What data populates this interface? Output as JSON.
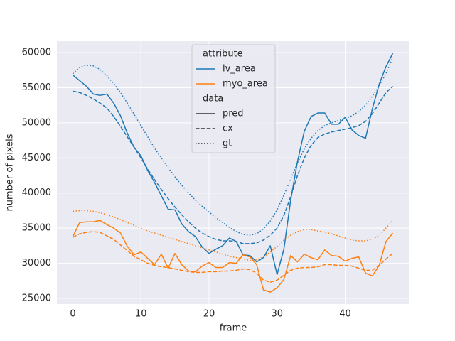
{
  "chart_data": {
    "type": "line",
    "xlabel": "frame",
    "ylabel": "number of pixels",
    "x": [
      0,
      1,
      2,
      3,
      4,
      5,
      6,
      7,
      8,
      9,
      10,
      11,
      12,
      13,
      14,
      15,
      16,
      17,
      18,
      19,
      20,
      21,
      22,
      23,
      24,
      25,
      26,
      27,
      28,
      29,
      30,
      31,
      32,
      33,
      34,
      35,
      36,
      37,
      38,
      39,
      40,
      41,
      42,
      43,
      44,
      45,
      46,
      47
    ],
    "xlim": [
      -2.35,
      49.35
    ],
    "xticks": [
      0,
      10,
      20,
      30,
      40
    ],
    "ylim": [
      24190,
      61620
    ],
    "yticks": [
      25000,
      30000,
      35000,
      40000,
      45000,
      50000,
      55000,
      60000
    ],
    "grid": true,
    "legend": "upper center",
    "hue": {
      "title": "attribute",
      "levels": [
        {
          "name": "lv_area",
          "color": "#1f77b4"
        },
        {
          "name": "myo_area",
          "color": "#ff7f0e"
        }
      ]
    },
    "style": {
      "title": "data",
      "levels": [
        {
          "name": "pred",
          "dash": "solid"
        },
        {
          "name": "cx",
          "dash": "dashed"
        },
        {
          "name": "gt",
          "dash": "dotted"
        }
      ]
    },
    "series": [
      {
        "hue": "lv_area",
        "style": "pred",
        "values": [
          56800,
          56000,
          55200,
          54100,
          53900,
          54100,
          52800,
          51000,
          48500,
          46500,
          45300,
          43200,
          41500,
          39600,
          37700,
          37600,
          35600,
          34500,
          33800,
          32300,
          31400,
          32000,
          32500,
          33600,
          33100,
          31200,
          31100,
          30200,
          30800,
          32500,
          28400,
          32000,
          39000,
          44500,
          48800,
          50900,
          51400,
          51400,
          49800,
          49800,
          50800,
          49000,
          48200,
          47800,
          52000,
          55500,
          58000,
          59900
        ]
      },
      {
        "hue": "lv_area",
        "style": "cx",
        "values": [
          54500,
          54300,
          53900,
          53400,
          52800,
          52100,
          50900,
          49500,
          48000,
          46500,
          45000,
          43400,
          41900,
          40500,
          39200,
          38000,
          36900,
          35900,
          35000,
          34300,
          33800,
          33400,
          33200,
          33200,
          33100,
          32800,
          32800,
          32900,
          33300,
          34000,
          35000,
          36800,
          39500,
          42500,
          45000,
          46800,
          47900,
          48400,
          48700,
          48900,
          49100,
          49300,
          49600,
          50200,
          51300,
          52800,
          54300,
          55200
        ]
      },
      {
        "hue": "lv_area",
        "style": "gt",
        "values": [
          57000,
          57900,
          58200,
          58100,
          57600,
          56700,
          55600,
          54300,
          52800,
          51200,
          49600,
          48000,
          46400,
          45000,
          43600,
          42300,
          41100,
          40000,
          39000,
          38100,
          37300,
          36500,
          35800,
          35100,
          34500,
          34100,
          34000,
          34200,
          34900,
          36000,
          37600,
          39700,
          42000,
          44300,
          46300,
          47800,
          48900,
          49600,
          50000,
          50300,
          50600,
          51000,
          51600,
          52500,
          53800,
          55300,
          57000,
          59300
        ]
      },
      {
        "hue": "myo_area",
        "style": "pred",
        "values": [
          33800,
          35800,
          35900,
          35900,
          36100,
          35500,
          35000,
          34300,
          32400,
          31200,
          31600,
          30700,
          29800,
          31300,
          29300,
          31400,
          29800,
          28900,
          28800,
          29600,
          30100,
          29400,
          29400,
          30100,
          30000,
          31200,
          30900,
          29800,
          26200,
          25900,
          26500,
          27700,
          31100,
          30200,
          31300,
          30800,
          30500,
          31900,
          31100,
          31000,
          30300,
          30700,
          30900,
          28600,
          28200,
          29700,
          33100,
          34300
        ]
      },
      {
        "hue": "myo_area",
        "style": "cx",
        "values": [
          33700,
          34200,
          34400,
          34500,
          34400,
          33900,
          33400,
          32600,
          31800,
          31000,
          30500,
          30000,
          29700,
          29500,
          29400,
          29200,
          29000,
          28800,
          28700,
          28700,
          28800,
          28800,
          28900,
          28900,
          29000,
          29200,
          29100,
          28600,
          27600,
          27300,
          27600,
          28300,
          29000,
          29300,
          29400,
          29400,
          29500,
          29800,
          29800,
          29700,
          29700,
          29600,
          29300,
          29000,
          29000,
          29700,
          30600,
          31400
        ]
      },
      {
        "hue": "myo_area",
        "style": "gt",
        "values": [
          37400,
          37500,
          37500,
          37400,
          37200,
          36900,
          36600,
          36200,
          35800,
          35400,
          35000,
          34600,
          34300,
          34000,
          33700,
          33400,
          33100,
          32800,
          32500,
          32200,
          31900,
          31600,
          31300,
          31000,
          30800,
          30600,
          30400,
          30500,
          30900,
          31600,
          32400,
          33300,
          34000,
          34500,
          34800,
          34800,
          34600,
          34400,
          34200,
          33900,
          33600,
          33300,
          33200,
          33200,
          33400,
          34000,
          35000,
          36100
        ]
      }
    ]
  }
}
